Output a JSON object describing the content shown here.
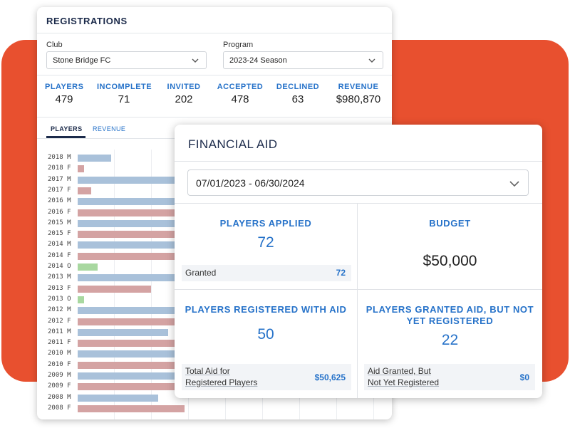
{
  "colors": {
    "accent_blue": "#2672c9",
    "navy": "#1b2a4a",
    "background_orange": "#e8502f",
    "bar_male": "#a9c1da",
    "bar_female": "#d4a3a3",
    "bar_other": "#a8d8a0"
  },
  "registrations": {
    "title": "REGISTRATIONS",
    "club": {
      "label": "Club",
      "value": "Stone Bridge FC"
    },
    "program": {
      "label": "Program",
      "value": "2023-24 Season"
    },
    "stats": [
      {
        "label": "PLAYERS",
        "value": "479"
      },
      {
        "label": "INCOMPLETE",
        "value": "71"
      },
      {
        "label": "INVITED",
        "value": "202"
      },
      {
        "label": "ACCEPTED",
        "value": "478"
      },
      {
        "label": "DECLINED",
        "value": "63"
      },
      {
        "label": "REVENUE",
        "value": "$980,870"
      }
    ],
    "tabs": [
      {
        "label": "PLAYERS",
        "active": true
      },
      {
        "label": "REVENUE",
        "active": false
      }
    ]
  },
  "chart_data": {
    "type": "bar",
    "orientation": "horizontal",
    "categories": [
      "2018 M",
      "2018 F",
      "2017 M",
      "2017 F",
      "2016 M",
      "2016 F",
      "2015 M",
      "2015 F",
      "2014 M",
      "2014 F",
      "2014 O",
      "2013 M",
      "2013 F",
      "2013 O",
      "2012 M",
      "2012 F",
      "2011 M",
      "2011 F",
      "2010 M",
      "2010 F",
      "2009 M",
      "2009 F",
      "2008 M",
      "2008 F"
    ],
    "values": [
      10,
      2,
      45,
      4,
      36,
      29,
      43,
      33,
      42,
      35,
      6,
      38,
      22,
      2,
      33,
      30,
      27,
      35,
      34,
      29,
      38,
      30,
      24,
      32
    ],
    "category_type": [
      "M",
      "F",
      "M",
      "F",
      "M",
      "F",
      "M",
      "F",
      "M",
      "F",
      "O",
      "M",
      "F",
      "O",
      "M",
      "F",
      "M",
      "F",
      "M",
      "F",
      "M",
      "F",
      "M",
      "F"
    ],
    "grid": true
  },
  "financial_aid": {
    "title": "FINANCIAL AID",
    "date_range": "07/01/2023 - 06/30/2024",
    "players_applied": {
      "label": "PLAYERS APPLIED",
      "value": "72",
      "sub_label": "Granted",
      "sub_value": "72"
    },
    "budget": {
      "label": "BUDGET",
      "value": "$50,000"
    },
    "registered_with_aid": {
      "label": "PLAYERS REGISTERED WITH AID",
      "value": "50",
      "sub_label_1": "Total Aid for",
      "sub_label_2": "Registered Players",
      "sub_value": "$50,625"
    },
    "granted_not_registered": {
      "label_1": "PLAYERS GRANTED AID, BUT NOT",
      "label_2": "YET REGISTERED",
      "value": "22",
      "sub_label_1": "Aid Granted, But",
      "sub_label_2": "Not Yet Registered",
      "sub_value": "$0"
    }
  }
}
